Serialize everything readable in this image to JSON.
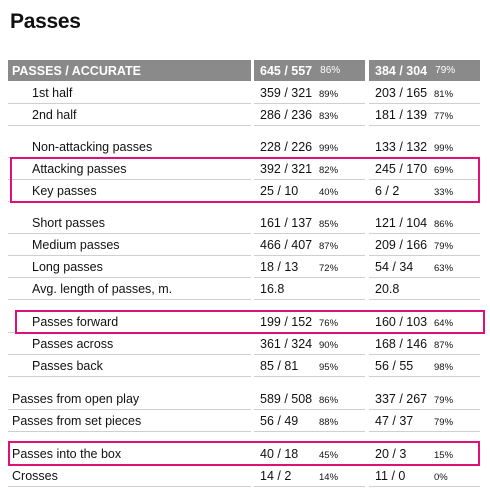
{
  "page_title": "Passes",
  "header": {
    "label": "PASSES / ACCURATE",
    "team1": {
      "value": "645 / 557",
      "pct": "86%"
    },
    "team2": {
      "value": "384 / 304",
      "pct": "79%"
    }
  },
  "rows": [
    {
      "label": "1st half",
      "v1": "359 / 321",
      "p1": "89%",
      "v2": "203 / 165",
      "p2": "81%"
    },
    {
      "label": "2nd half",
      "v1": "286 / 236",
      "p1": "83%",
      "v2": "181 / 139",
      "p2": "77%"
    },
    {
      "label": "Non-attacking passes",
      "v1": "228 / 226",
      "p1": "99%",
      "v2": "133 / 132",
      "p2": "99%"
    },
    {
      "label": "Attacking passes",
      "v1": "392 / 321",
      "p1": "82%",
      "v2": "245 / 170",
      "p2": "69%"
    },
    {
      "label": "Key passes",
      "v1": "25 / 10",
      "p1": "40%",
      "v2": "6 / 2",
      "p2": "33%"
    },
    {
      "label": "Short passes",
      "v1": "161 / 137",
      "p1": "85%",
      "v2": "121 / 104",
      "p2": "86%"
    },
    {
      "label": "Medium passes",
      "v1": "466 / 407",
      "p1": "87%",
      "v2": "209 / 166",
      "p2": "79%"
    },
    {
      "label": "Long passes",
      "v1": "18 / 13",
      "p1": "72%",
      "v2": "54 / 34",
      "p2": "63%"
    },
    {
      "label": "Avg. length of passes, m.",
      "v1": "16.8",
      "p1": "",
      "v2": "20.8",
      "p2": ""
    },
    {
      "label": "Passes forward",
      "v1": "199 / 152",
      "p1": "76%",
      "v2": "160 / 103",
      "p2": "64%"
    },
    {
      "label": "Passes across",
      "v1": "361 / 324",
      "p1": "90%",
      "v2": "168 / 146",
      "p2": "87%"
    },
    {
      "label": "Passes back",
      "v1": "85 / 81",
      "p1": "95%",
      "v2": "56 / 55",
      "p2": "98%"
    },
    {
      "label": "Passes from open play",
      "v1": "589 / 508",
      "p1": "86%",
      "v2": "337 / 267",
      "p2": "79%"
    },
    {
      "label": "Passes from set pieces",
      "v1": "56 / 49",
      "p1": "88%",
      "v2": "47 / 37",
      "p2": "79%"
    },
    {
      "label": "Passes into the box",
      "v1": "40 / 18",
      "p1": "45%",
      "v2": "20 / 3",
      "p2": "15%"
    },
    {
      "label": "Crosses",
      "v1": "14 / 2",
      "p1": "14%",
      "v2": "11 / 0",
      "p2": "0%"
    }
  ],
  "highlight_color": "#e0107a",
  "header_color": "#8a8a8a"
}
